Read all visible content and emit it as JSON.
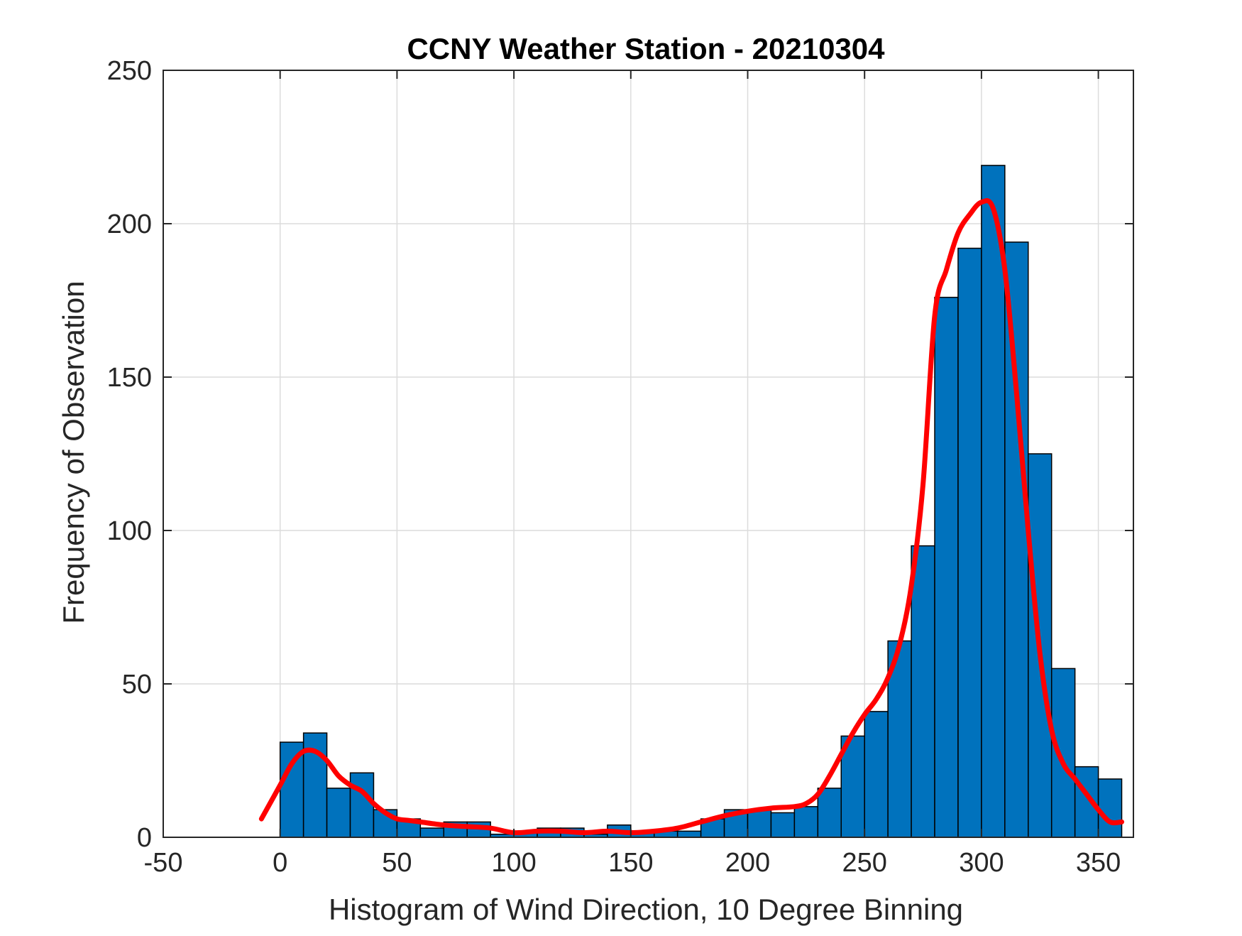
{
  "chart_data": {
    "type": "bar",
    "title": "CCNY Weather Station - 20210304",
    "xlabel": "Histogram of Wind Direction, 10 Degree Binning",
    "ylabel": "Frequency of Observation",
    "xlim": [
      -50,
      365
    ],
    "ylim": [
      0,
      250
    ],
    "xticks": [
      -50,
      0,
      50,
      100,
      150,
      200,
      250,
      300,
      350
    ],
    "yticks": [
      0,
      50,
      100,
      150,
      200,
      250
    ],
    "grid": true,
    "bin_width": 10,
    "bin_edges": [
      0,
      10,
      20,
      30,
      40,
      50,
      60,
      70,
      80,
      90,
      100,
      110,
      120,
      130,
      140,
      150,
      160,
      170,
      180,
      190,
      200,
      210,
      220,
      230,
      240,
      250,
      260,
      270,
      280,
      290,
      300,
      310,
      320,
      330,
      340,
      350,
      360
    ],
    "values": [
      31,
      34,
      16,
      21,
      9,
      6,
      3,
      5,
      5,
      1,
      2,
      3,
      3,
      1,
      4,
      2,
      2,
      2,
      6,
      9,
      9,
      8,
      10,
      16,
      33,
      41,
      64,
      95,
      176,
      192,
      219,
      194,
      125,
      55,
      23,
      19
    ],
    "bar_color": "#0072BD",
    "bar_edge_color": "#000000",
    "curve": {
      "color": "#FF0000",
      "x": [
        -8,
        0,
        5,
        10,
        15,
        20,
        25,
        30,
        35,
        40,
        45,
        50,
        55,
        60,
        70,
        80,
        90,
        100,
        110,
        120,
        130,
        140,
        150,
        160,
        170,
        180,
        190,
        200,
        210,
        220,
        225,
        230,
        235,
        240,
        245,
        250,
        255,
        260,
        265,
        270,
        275,
        280,
        285,
        290,
        295,
        300,
        305,
        310,
        315,
        320,
        325,
        330,
        335,
        340,
        345,
        350,
        355,
        360
      ],
      "y": [
        6,
        17,
        24,
        28,
        28,
        25,
        20,
        17,
        15,
        11,
        8,
        6,
        5.5,
        5,
        4,
        3.5,
        3,
        1.5,
        2,
        2,
        1.5,
        2,
        1.5,
        2,
        3,
        5,
        7,
        8.5,
        9.5,
        10,
        11,
        14,
        20,
        27,
        34,
        40,
        45,
        52,
        63,
        82,
        115,
        170,
        185,
        197,
        203,
        207,
        205,
        185,
        145,
        100,
        60,
        35,
        24,
        19,
        14,
        9,
        5,
        5
      ]
    }
  }
}
